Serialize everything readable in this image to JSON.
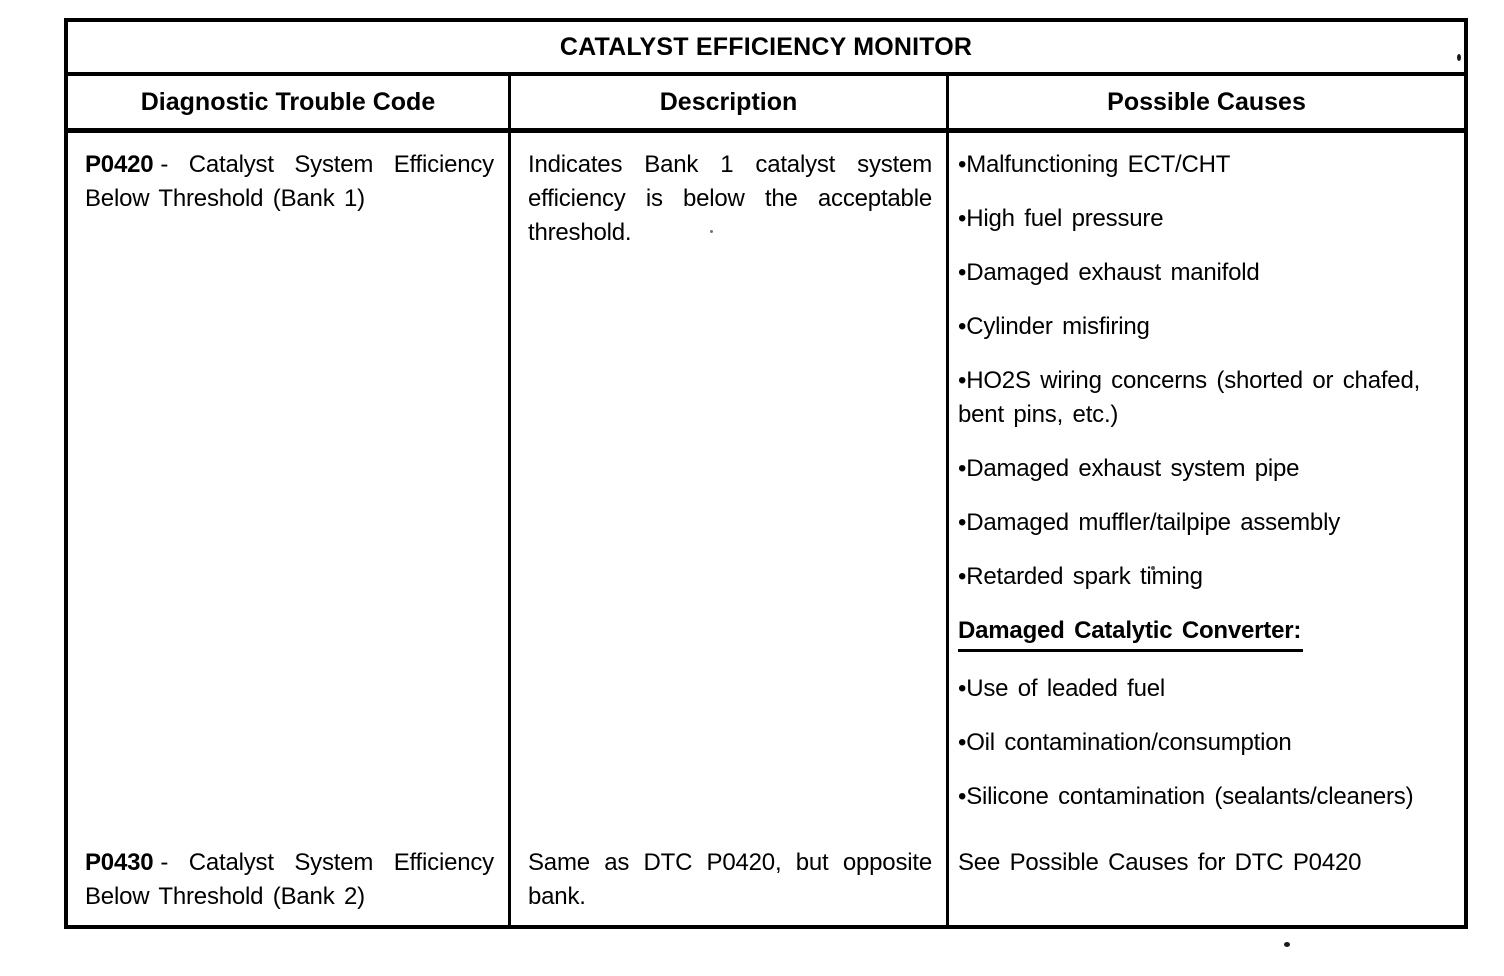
{
  "colors": {
    "border": "#000000",
    "text": "#000000",
    "background": "#ffffff"
  },
  "icons": {
    "bullet": "•"
  },
  "table": {
    "title": "CATALYST EFFICIENCY MONITOR",
    "columns": [
      "Diagnostic Trouble Code",
      "Description",
      "Possible Causes"
    ],
    "rows": [
      {
        "code": "P0420",
        "code_text": "- Catalyst System Efficiency Below Threshold (Bank 1)",
        "description": "Indicates Bank 1 catalyst system efficiency is below the acceptable threshold.",
        "causes": [
          "Malfunctioning ECT/CHT",
          "High fuel pressure",
          "Damaged exhaust manifold",
          "Cylinder misfiring",
          "HO2S wiring concerns (shorted or chafed, bent pins, etc.)",
          "Damaged exhaust system pipe",
          "Damaged muffler/tailpipe assembly",
          "Retarded spark timing"
        ],
        "causes_heading": "Damaged Catalytic Converter:",
        "causes2": [
          "Use of leaded fuel",
          "Oil contamination/consumption",
          "Silicone contamination (sealants/cleaners)"
        ]
      },
      {
        "code": "P0430",
        "code_text": "- Catalyst System Efficiency Below Threshold (Bank 2)",
        "description": "Same as DTC P0420, but opposite bank.",
        "causes_text": "See Possible Causes for DTC P0420"
      }
    ]
  }
}
